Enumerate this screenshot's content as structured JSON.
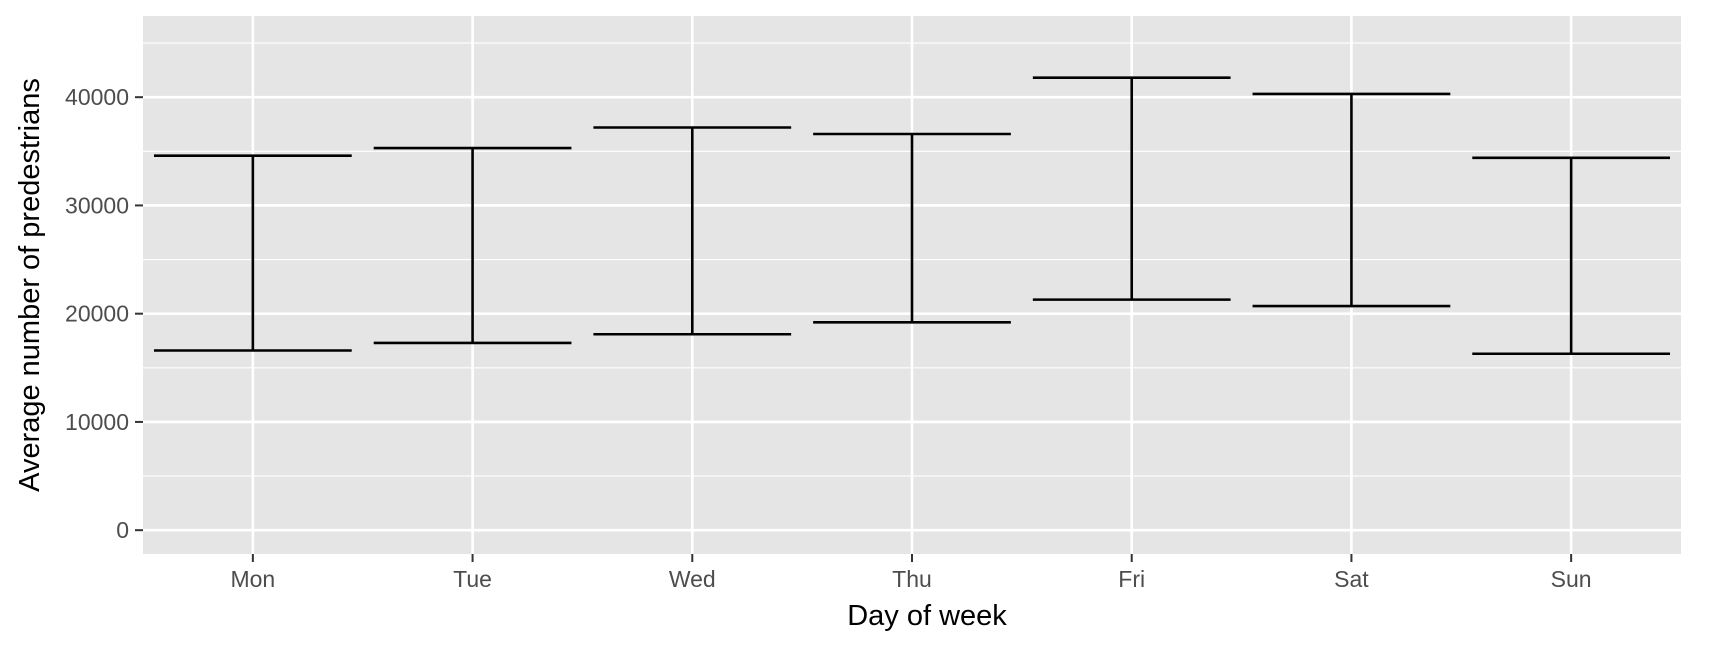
{
  "chart_data": {
    "type": "errorbar",
    "title": "",
    "xlabel": "Day of week",
    "ylabel": "Average number of predestrians",
    "categories": [
      "Mon",
      "Tue",
      "Wed",
      "Thu",
      "Fri",
      "Sat",
      "Sun"
    ],
    "series": [
      {
        "lower": [
          16600,
          17300,
          18100,
          19200,
          21300,
          20700,
          16300
        ],
        "upper": [
          34600,
          35300,
          37200,
          36600,
          41800,
          40300,
          34400
        ]
      }
    ],
    "ylim": [
      -2200,
      47500
    ],
    "yticks": [
      0,
      10000,
      20000,
      30000,
      40000
    ],
    "ytick_labels": [
      "0",
      "10000",
      "20000",
      "30000",
      "40000"
    ],
    "grid": true,
    "legend": "none",
    "colors": {
      "panel_background": "#e5e5e5",
      "grid": "#ffffff",
      "errorbar": "#000000",
      "tick_label": "#4d4d4d",
      "axis_title": "#000000"
    }
  }
}
